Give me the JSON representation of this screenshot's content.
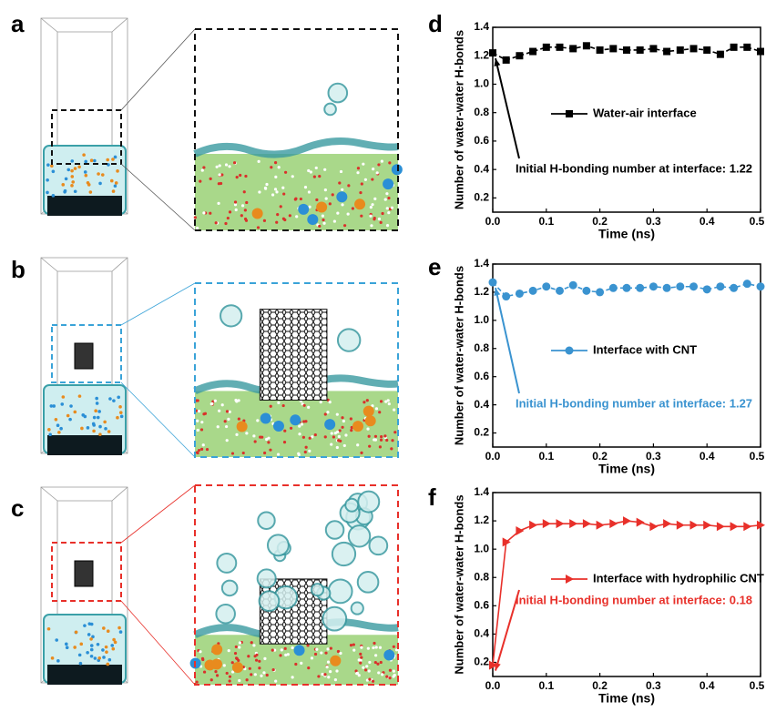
{
  "panel_labels": [
    "a",
    "b",
    "c"
  ],
  "chart_data": [
    {
      "type": "line",
      "panel": "d",
      "xlabel": "Time (ns)",
      "ylabel": "Number of water-water H-bonds",
      "x": [
        0,
        0.025,
        0.05,
        0.075,
        0.1,
        0.125,
        0.15,
        0.175,
        0.2,
        0.225,
        0.25,
        0.275,
        0.3,
        0.325,
        0.35,
        0.375,
        0.4,
        0.425,
        0.45,
        0.475,
        0.5
      ],
      "series": [
        {
          "name": "Water-air interface",
          "color": "#000000",
          "marker": "square",
          "values": [
            1.22,
            1.17,
            1.2,
            1.23,
            1.26,
            1.26,
            1.25,
            1.27,
            1.24,
            1.25,
            1.24,
            1.24,
            1.25,
            1.23,
            1.24,
            1.25,
            1.24,
            1.21,
            1.26,
            1.26,
            1.23
          ]
        }
      ],
      "annotation": "Initial H-bonding number at interface: 1.22",
      "xlim": [
        0,
        0.5
      ],
      "xticks": [
        {
          "value": 0,
          "label": "0.0"
        },
        0.1,
        0.2,
        0.3,
        0.4,
        0.5
      ],
      "ylim": [
        0.1,
        1.4
      ],
      "yticks": [
        0.2,
        0.4,
        0.6,
        0.8,
        {
          "value": 1,
          "label": "1.0"
        },
        1.2,
        1.4
      ],
      "legend": "center"
    },
    {
      "type": "line",
      "panel": "e",
      "xlabel": "Time (ns)",
      "ylabel": "Number of water-water H-bonds",
      "x": [
        0,
        0.025,
        0.05,
        0.075,
        0.1,
        0.125,
        0.15,
        0.175,
        0.2,
        0.225,
        0.25,
        0.275,
        0.3,
        0.325,
        0.35,
        0.375,
        0.4,
        0.425,
        0.45,
        0.475,
        0.5
      ],
      "series": [
        {
          "name": "Interface with CNT",
          "color": "#3a93d0",
          "marker": "circle",
          "values": [
            1.27,
            1.17,
            1.19,
            1.21,
            1.24,
            1.21,
            1.25,
            1.21,
            1.2,
            1.23,
            1.23,
            1.23,
            1.24,
            1.23,
            1.24,
            1.24,
            1.22,
            1.24,
            1.23,
            1.26,
            1.24
          ]
        }
      ],
      "annotation": "Initial H-bonding number at interface: 1.27",
      "xlim": [
        0,
        0.5
      ],
      "xticks": [
        {
          "value": 0,
          "label": "0.0"
        },
        0.1,
        0.2,
        0.3,
        0.4,
        0.5
      ],
      "ylim": [
        0.1,
        1.4
      ],
      "yticks": [
        0.2,
        0.4,
        0.6,
        0.8,
        {
          "value": 1,
          "label": "1.0"
        },
        1.2,
        1.4
      ],
      "legend": "center"
    },
    {
      "type": "line",
      "panel": "f",
      "xlabel": "Time (ns)",
      "ylabel": "Number of water-water H-bonds",
      "x": [
        0,
        0.025,
        0.05,
        0.075,
        0.1,
        0.125,
        0.15,
        0.175,
        0.2,
        0.225,
        0.25,
        0.275,
        0.3,
        0.325,
        0.35,
        0.375,
        0.4,
        0.425,
        0.45,
        0.475,
        0.5
      ],
      "series": [
        {
          "name": "Interface with hydrophilic CNT",
          "color": "#e8302a",
          "marker": "triangle-right",
          "values": [
            0.18,
            1.05,
            1.13,
            1.17,
            1.18,
            1.18,
            1.18,
            1.18,
            1.17,
            1.18,
            1.2,
            1.19,
            1.16,
            1.18,
            1.17,
            1.17,
            1.17,
            1.16,
            1.16,
            1.16,
            1.17
          ]
        }
      ],
      "annotation": "Initial H-bonding number at interface: 0.18",
      "xlim": [
        0,
        0.5
      ],
      "xticks": [
        {
          "value": 0,
          "label": "0.0"
        },
        0.1,
        0.2,
        0.3,
        0.4,
        0.5
      ],
      "ylim": [
        0.1,
        1.4
      ],
      "yticks": [
        0.2,
        0.4,
        0.6,
        0.8,
        {
          "value": 1,
          "label": "1.0"
        },
        1.2,
        1.4
      ],
      "legend": "center"
    }
  ]
}
